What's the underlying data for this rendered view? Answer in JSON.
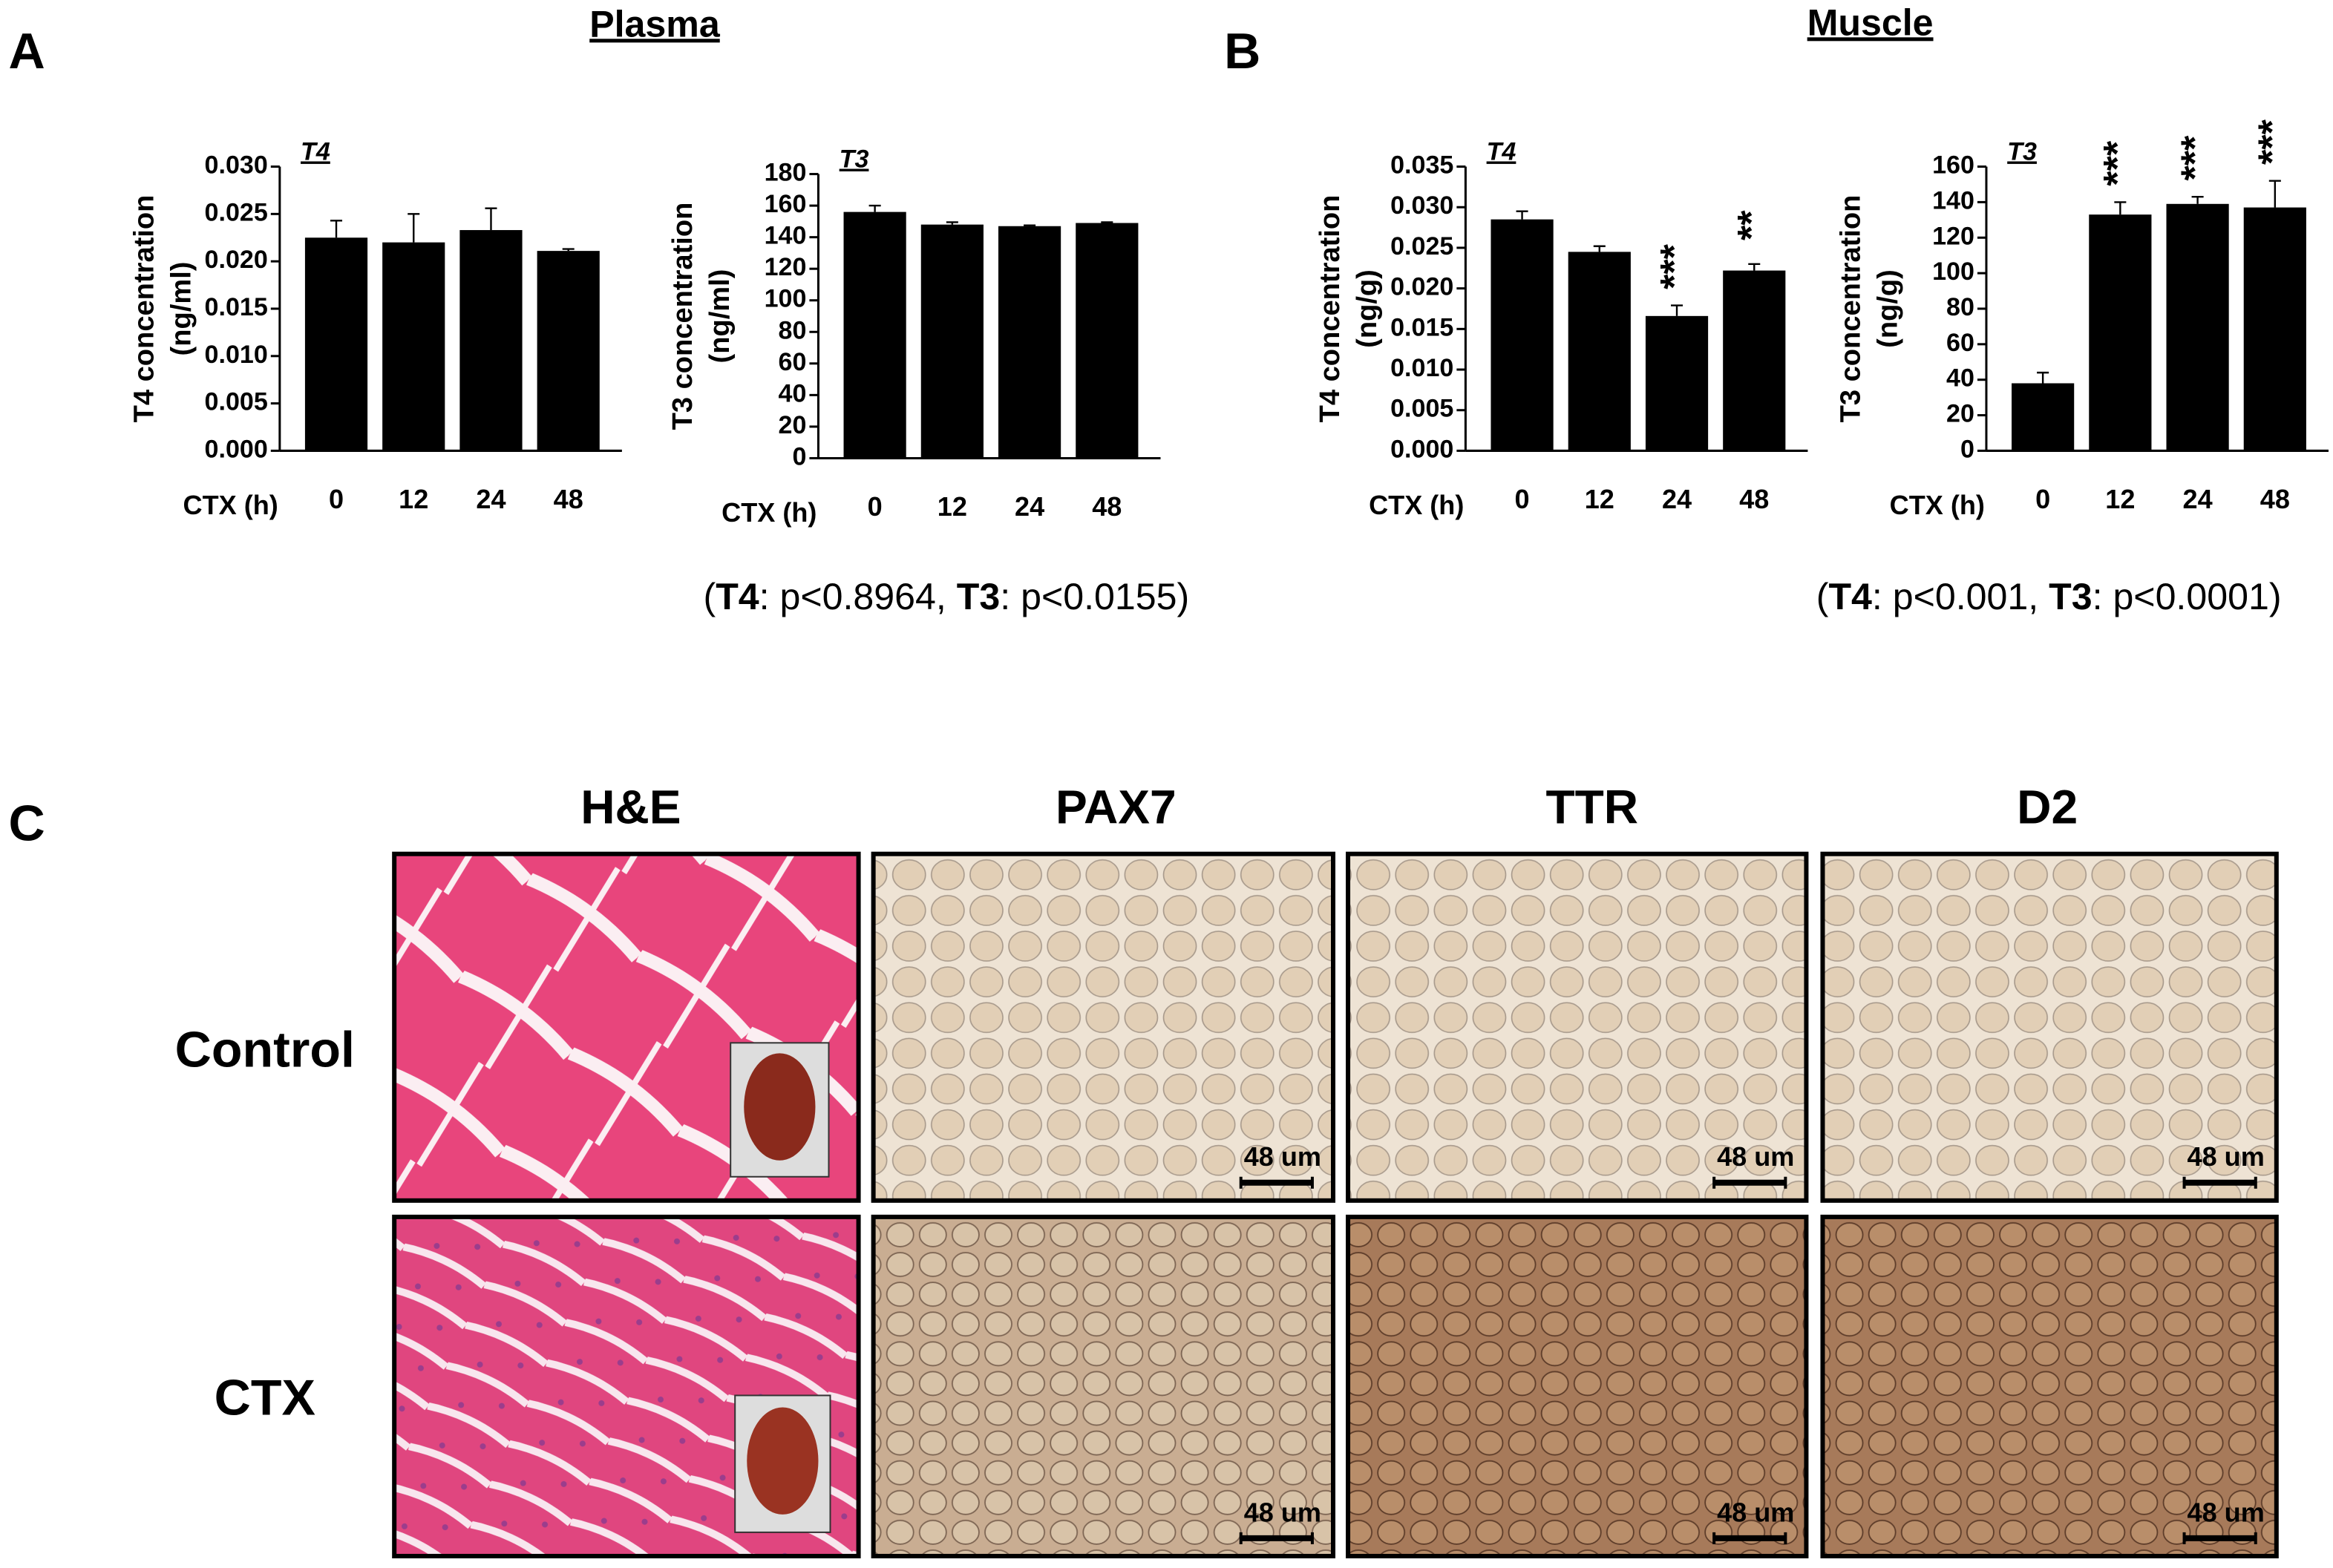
{
  "figure": {
    "panels": [
      {
        "label": "A",
        "title": "Plasma",
        "note": [
          {
            "text": "(",
            "bold": false
          },
          {
            "text": "T4",
            "bold": true
          },
          {
            "text": ": p<0.8964, ",
            "bold": false
          },
          {
            "text": "T3",
            "bold": true
          },
          {
            "text": ": p<0.0155)",
            "bold": false
          }
        ]
      },
      {
        "label": "B",
        "title": "Muscle",
        "note": [
          {
            "text": "(",
            "bold": false
          },
          {
            "text": "T4",
            "bold": true
          },
          {
            "text": ": p<0.001, ",
            "bold": false
          },
          {
            "text": "T3",
            "bold": true
          },
          {
            "text": ": p<0.0001)",
            "bold": false
          }
        ]
      },
      {
        "label": "C"
      }
    ],
    "micrographs": {
      "columns": [
        "H&E",
        "PAX7",
        "TTR",
        "D2"
      ],
      "rows": [
        "Control",
        "CTX"
      ],
      "scale_bar": "48 um"
    }
  },
  "chart_data": [
    {
      "type": "bar",
      "tag": "T4",
      "ylabel": [
        "T4 concentration",
        "(ng/ml)"
      ],
      "xlabel": "CTX (h)",
      "categories": [
        "0",
        "12",
        "24",
        "48"
      ],
      "values": [
        0.0225,
        0.022,
        0.0233,
        0.0211
      ],
      "errors": [
        0.0018,
        0.003,
        0.0023,
        0.0002
      ],
      "color": "#000000",
      "ylim": [
        0,
        0.03
      ],
      "yticks": [
        {
          "value": 0,
          "label": "0.000"
        },
        {
          "value": 0.005,
          "label": "0.005"
        },
        {
          "value": 0.01,
          "label": "0.010"
        },
        {
          "value": 0.015,
          "label": "0.015"
        },
        {
          "value": 0.02,
          "label": "0.020"
        },
        {
          "value": 0.025,
          "label": "0.025"
        },
        {
          "value": 0.03,
          "label": "0.030"
        }
      ]
    },
    {
      "type": "bar",
      "tag": "T3",
      "ylabel": [
        "T3 concentration",
        "(ng/ml)"
      ],
      "xlabel": "CTX (h)",
      "categories": [
        "0",
        "12",
        "24",
        "48"
      ],
      "values": [
        156,
        148,
        147,
        149
      ],
      "errors": [
        4,
        1.5,
        0.5,
        0.5
      ],
      "color": "#000000",
      "ylim": [
        0,
        180
      ],
      "yticks": [
        0,
        20,
        40,
        60,
        80,
        100,
        120,
        140,
        160,
        180
      ]
    },
    {
      "type": "bar",
      "tag": "T4",
      "ylabel": [
        "T4 concentration",
        "(ng/g)"
      ],
      "xlabel": "CTX (h)",
      "categories": [
        "0",
        "12",
        "24",
        "48"
      ],
      "values": [
        0.0285,
        0.0245,
        0.0166,
        0.0222
      ],
      "errors": [
        0.001,
        0.0007,
        0.0013,
        0.0008
      ],
      "significance": [
        null,
        null,
        "***",
        "**"
      ],
      "color": "#000000",
      "ylim": [
        0,
        0.035
      ],
      "yticks": [
        {
          "value": 0,
          "label": "0.000"
        },
        {
          "value": 0.005,
          "label": "0.005"
        },
        {
          "value": 0.01,
          "label": "0.010"
        },
        {
          "value": 0.015,
          "label": "0.015"
        },
        {
          "value": 0.02,
          "label": "0.020"
        },
        {
          "value": 0.025,
          "label": "0.025"
        },
        {
          "value": 0.03,
          "label": "0.030"
        },
        {
          "value": 0.035,
          "label": "0.035"
        }
      ]
    },
    {
      "type": "bar",
      "tag": "T3",
      "ylabel": [
        "T3 concentration",
        "(ng/g)"
      ],
      "xlabel": "CTX (h)",
      "categories": [
        "0",
        "12",
        "24",
        "48"
      ],
      "values": [
        38,
        133,
        139,
        137
      ],
      "errors": [
        6,
        7,
        4,
        15
      ],
      "significance": [
        null,
        "***",
        "***",
        "***"
      ],
      "color": "#000000",
      "ylim": [
        0,
        160
      ],
      "yticks": [
        0,
        20,
        40,
        60,
        80,
        100,
        120,
        140,
        160
      ]
    }
  ]
}
